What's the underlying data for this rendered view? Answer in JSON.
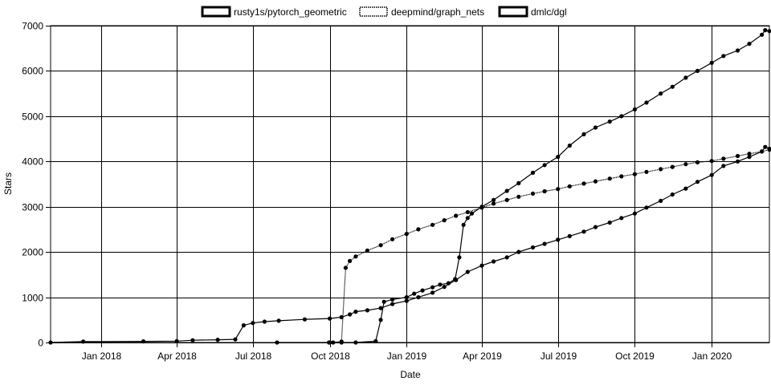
{
  "chart_data": {
    "type": "line",
    "title": "",
    "xlabel": "Date",
    "ylabel": "Stars",
    "x_type": "date",
    "xlim": [
      "2017-11-01",
      "2020-03-10"
    ],
    "ylim": [
      0,
      7000
    ],
    "x_ticks": [
      {
        "date": "2018-01-01",
        "label": "Jan 2018"
      },
      {
        "date": "2018-04-01",
        "label": "Apr 2018"
      },
      {
        "date": "2018-07-01",
        "label": "Jul 2018"
      },
      {
        "date": "2018-10-01",
        "label": "Oct 2018"
      },
      {
        "date": "2019-01-01",
        "label": "Jan 2019"
      },
      {
        "date": "2019-04-01",
        "label": "Apr 2019"
      },
      {
        "date": "2019-07-01",
        "label": "Jul 2019"
      },
      {
        "date": "2019-10-01",
        "label": "Oct 2019"
      },
      {
        "date": "2020-01-01",
        "label": "Jan 2020"
      }
    ],
    "y_ticks": [
      {
        "value": 0,
        "label": "0"
      },
      {
        "value": 1000,
        "label": "1000"
      },
      {
        "value": 2000,
        "label": "2000"
      },
      {
        "value": 3000,
        "label": "3000"
      },
      {
        "value": 4000,
        "label": "4000"
      },
      {
        "value": 5000,
        "label": "5000"
      },
      {
        "value": 6000,
        "label": "6000"
      },
      {
        "value": 7000,
        "label": "7000"
      }
    ],
    "grid": true,
    "legend_position": "top",
    "series": [
      {
        "name": "rusty1s/pytorch_geometric",
        "points": [
          [
            "2018-07-30",
            0
          ],
          [
            "2018-09-30",
            0
          ],
          [
            "2018-10-05",
            0
          ],
          [
            "2018-10-15",
            0
          ],
          [
            "2018-11-01",
            0
          ],
          [
            "2018-11-25",
            30
          ],
          [
            "2018-12-01",
            500
          ],
          [
            "2018-12-05",
            900
          ],
          [
            "2018-12-15",
            950
          ],
          [
            "2019-01-01",
            1000
          ],
          [
            "2019-01-10",
            1080
          ],
          [
            "2019-01-20",
            1150
          ],
          [
            "2019-02-01",
            1220
          ],
          [
            "2019-02-10",
            1280
          ],
          [
            "2019-02-20",
            1310
          ],
          [
            "2019-02-28",
            1400
          ],
          [
            "2019-03-05",
            1880
          ],
          [
            "2019-03-10",
            2600
          ],
          [
            "2019-03-15",
            2750
          ],
          [
            "2019-03-20",
            2850
          ],
          [
            "2019-04-01",
            3000
          ],
          [
            "2019-04-15",
            3150
          ],
          [
            "2019-05-01",
            3350
          ],
          [
            "2019-05-15",
            3520
          ],
          [
            "2019-06-01",
            3750
          ],
          [
            "2019-06-15",
            3920
          ],
          [
            "2019-07-01",
            4100
          ],
          [
            "2019-07-15",
            4350
          ],
          [
            "2019-08-01",
            4600
          ],
          [
            "2019-08-15",
            4750
          ],
          [
            "2019-09-01",
            4880
          ],
          [
            "2019-09-15",
            5000
          ],
          [
            "2019-10-01",
            5150
          ],
          [
            "2019-10-15",
            5300
          ],
          [
            "2019-11-01",
            5500
          ],
          [
            "2019-11-15",
            5650
          ],
          [
            "2019-12-01",
            5850
          ],
          [
            "2019-12-15",
            6000
          ],
          [
            "2020-01-01",
            6180
          ],
          [
            "2020-01-15",
            6330
          ],
          [
            "2020-02-01",
            6450
          ],
          [
            "2020-02-15",
            6600
          ],
          [
            "2020-03-01",
            6800
          ],
          [
            "2020-03-05",
            6900
          ],
          [
            "2020-03-10",
            6880
          ]
        ]
      },
      {
        "name": "deepmind/graph_nets",
        "points": [
          [
            "2018-10-01",
            0
          ],
          [
            "2018-10-15",
            20
          ],
          [
            "2018-10-20",
            1650
          ],
          [
            "2018-10-25",
            1800
          ],
          [
            "2018-11-01",
            1900
          ],
          [
            "2018-11-15",
            2030
          ],
          [
            "2018-12-01",
            2150
          ],
          [
            "2018-12-15",
            2280
          ],
          [
            "2019-01-01",
            2400
          ],
          [
            "2019-01-15",
            2500
          ],
          [
            "2019-02-01",
            2600
          ],
          [
            "2019-02-15",
            2700
          ],
          [
            "2019-03-01",
            2800
          ],
          [
            "2019-03-15",
            2880
          ],
          [
            "2019-04-01",
            2980
          ],
          [
            "2019-04-15",
            3070
          ],
          [
            "2019-05-01",
            3150
          ],
          [
            "2019-05-15",
            3220
          ],
          [
            "2019-06-01",
            3290
          ],
          [
            "2019-06-15",
            3340
          ],
          [
            "2019-07-01",
            3390
          ],
          [
            "2019-07-15",
            3450
          ],
          [
            "2019-08-01",
            3510
          ],
          [
            "2019-08-15",
            3560
          ],
          [
            "2019-09-01",
            3620
          ],
          [
            "2019-09-15",
            3670
          ],
          [
            "2019-10-01",
            3720
          ],
          [
            "2019-10-15",
            3770
          ],
          [
            "2019-11-01",
            3830
          ],
          [
            "2019-11-15",
            3880
          ],
          [
            "2019-12-01",
            3940
          ],
          [
            "2019-12-15",
            3980
          ],
          [
            "2020-01-01",
            4010
          ],
          [
            "2020-01-15",
            4060
          ],
          [
            "2020-02-01",
            4120
          ],
          [
            "2020-02-15",
            4170
          ],
          [
            "2020-03-01",
            4220
          ],
          [
            "2020-03-10",
            4260
          ]
        ]
      },
      {
        "name": "dmlc/dgl",
        "points": [
          [
            "2017-11-01",
            0
          ],
          [
            "2017-12-10",
            20
          ],
          [
            "2018-02-20",
            25
          ],
          [
            "2018-04-01",
            30
          ],
          [
            "2018-04-20",
            50
          ],
          [
            "2018-05-20",
            60
          ],
          [
            "2018-06-10",
            70
          ],
          [
            "2018-06-20",
            380
          ],
          [
            "2018-07-01",
            430
          ],
          [
            "2018-07-15",
            460
          ],
          [
            "2018-08-01",
            480
          ],
          [
            "2018-09-01",
            510
          ],
          [
            "2018-10-01",
            530
          ],
          [
            "2018-10-15",
            560
          ],
          [
            "2018-10-25",
            620
          ],
          [
            "2018-11-01",
            680
          ],
          [
            "2018-11-15",
            710
          ],
          [
            "2018-12-01",
            760
          ],
          [
            "2018-12-15",
            850
          ],
          [
            "2019-01-01",
            920
          ],
          [
            "2019-01-15",
            1000
          ],
          [
            "2019-02-01",
            1100
          ],
          [
            "2019-02-15",
            1230
          ],
          [
            "2019-03-01",
            1380
          ],
          [
            "2019-03-15",
            1560
          ],
          [
            "2019-04-01",
            1700
          ],
          [
            "2019-04-15",
            1790
          ],
          [
            "2019-05-01",
            1880
          ],
          [
            "2019-05-15",
            2000
          ],
          [
            "2019-06-01",
            2100
          ],
          [
            "2019-06-15",
            2180
          ],
          [
            "2019-07-01",
            2270
          ],
          [
            "2019-07-15",
            2350
          ],
          [
            "2019-08-01",
            2450
          ],
          [
            "2019-08-15",
            2550
          ],
          [
            "2019-09-01",
            2650
          ],
          [
            "2019-09-15",
            2750
          ],
          [
            "2019-10-01",
            2850
          ],
          [
            "2019-10-15",
            2980
          ],
          [
            "2019-11-01",
            3130
          ],
          [
            "2019-11-15",
            3270
          ],
          [
            "2019-12-01",
            3400
          ],
          [
            "2019-12-15",
            3550
          ],
          [
            "2020-01-01",
            3700
          ],
          [
            "2020-01-15",
            3900
          ],
          [
            "2020-02-01",
            4000
          ],
          [
            "2020-02-15",
            4100
          ],
          [
            "2020-03-01",
            4220
          ],
          [
            "2020-03-05",
            4320
          ],
          [
            "2020-03-10",
            4280
          ]
        ]
      }
    ]
  }
}
